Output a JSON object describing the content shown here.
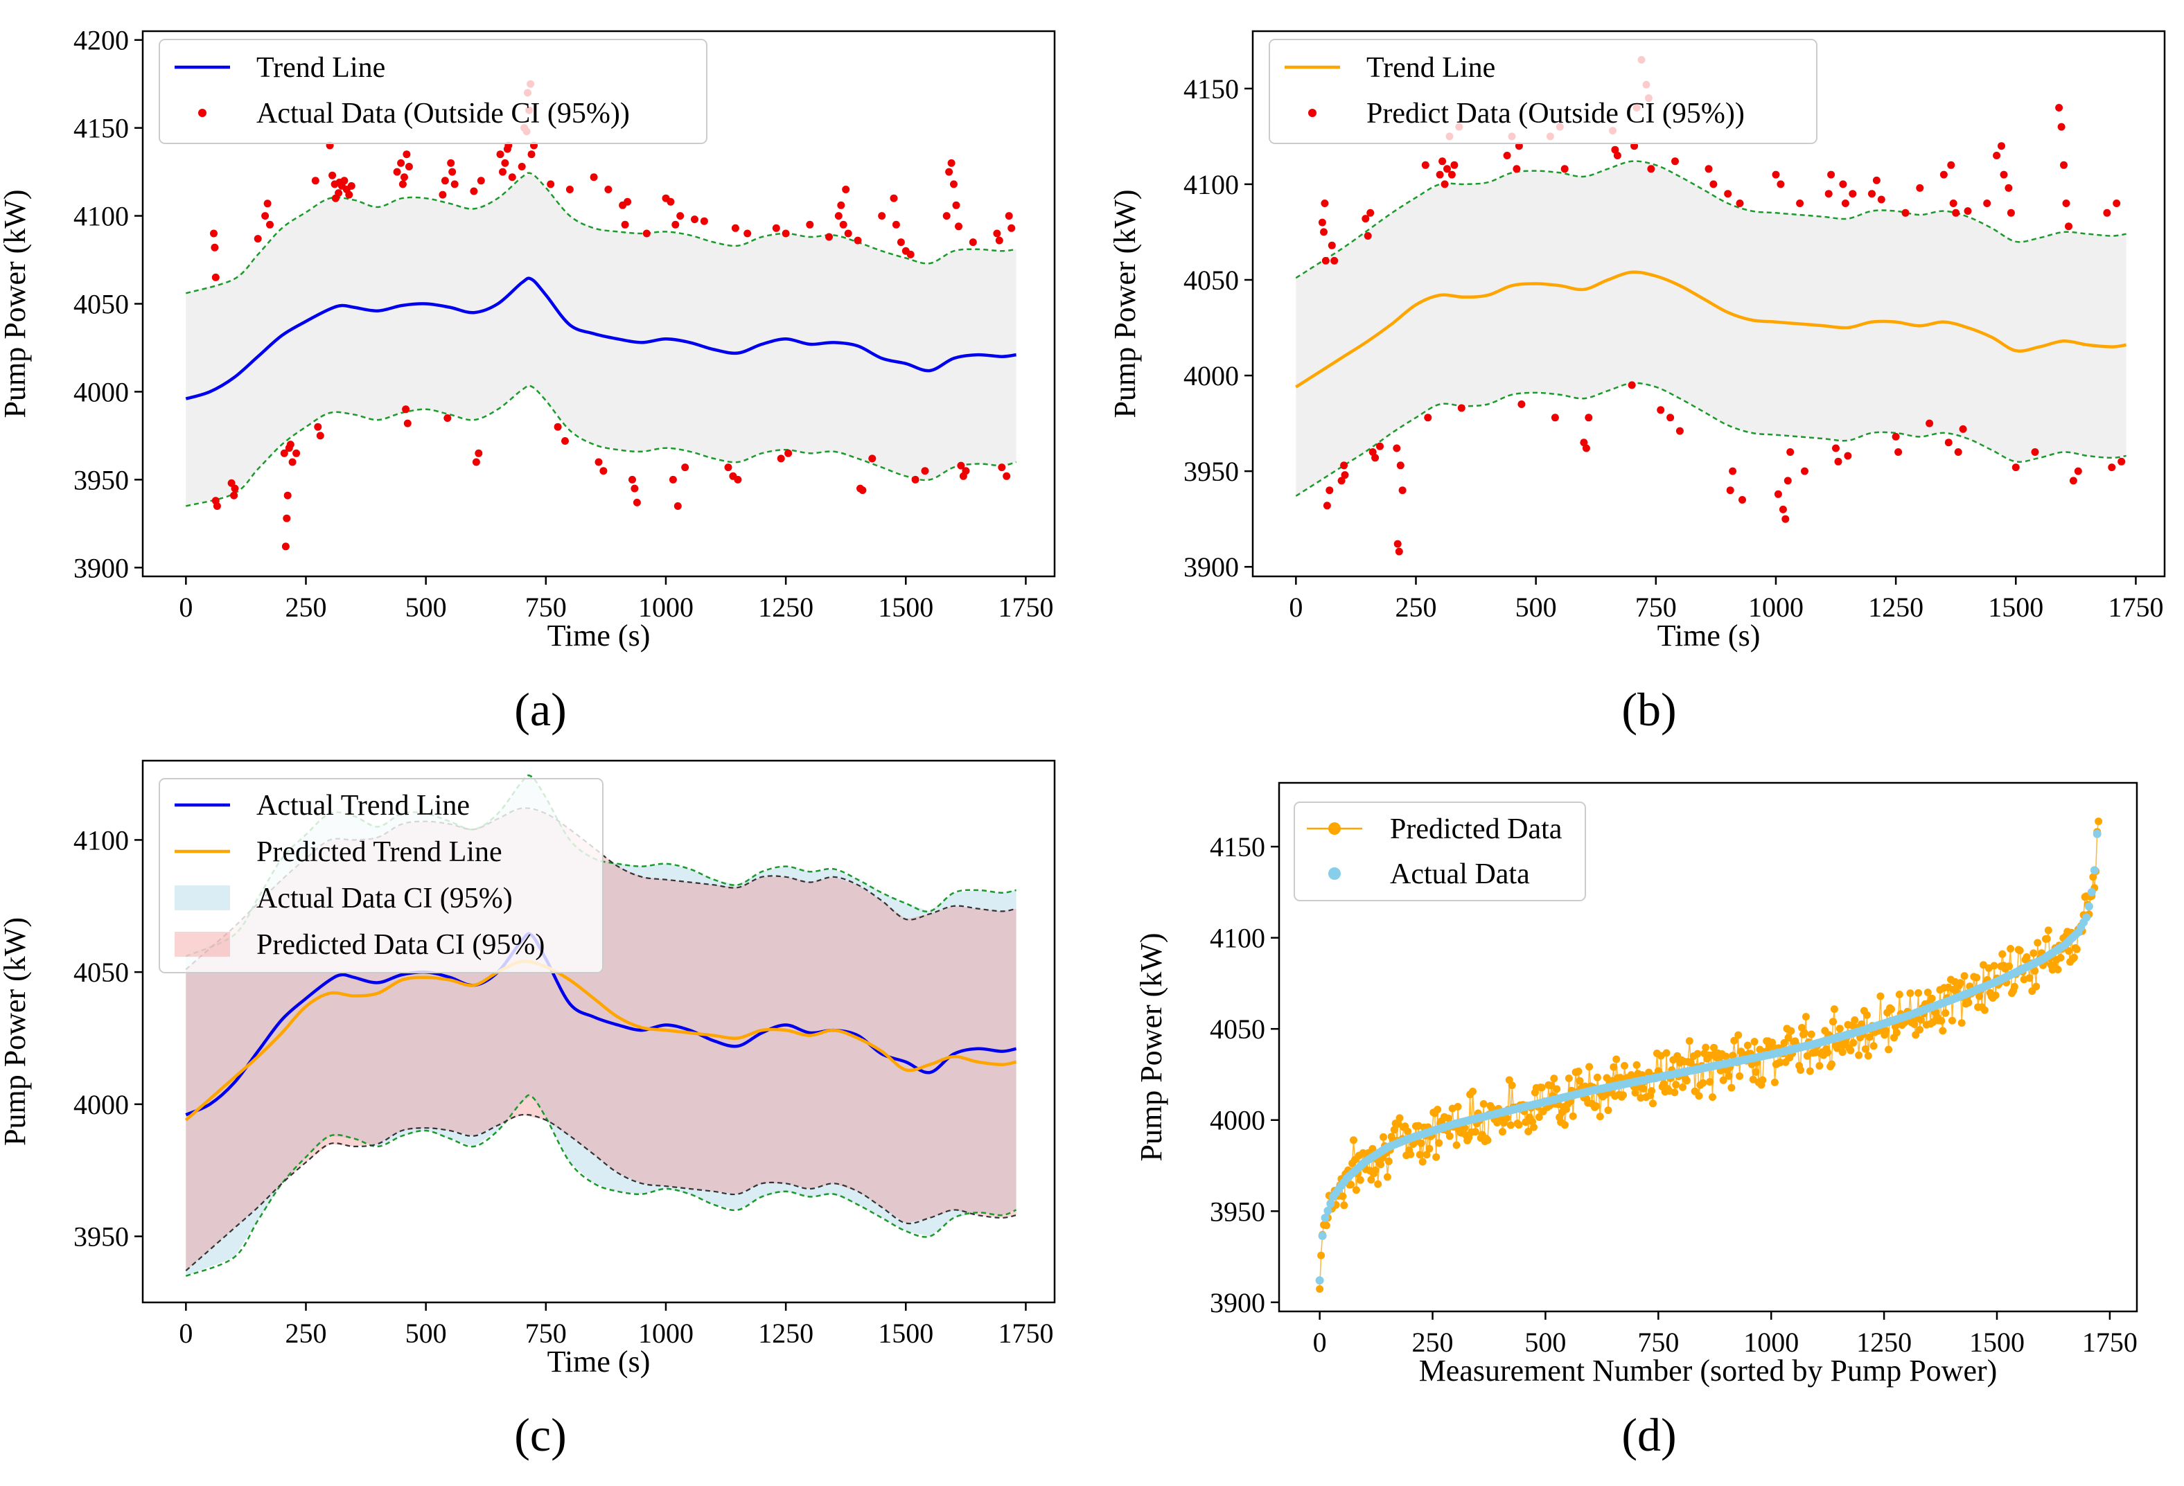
{
  "colors": {
    "actual_trend": "#0000ee",
    "predicted_trend": "#ffa500",
    "outlier": "#ee0000",
    "ci_band": "#d3d3d3",
    "ci_bound": "#1a9a2a",
    "actual_ci_fill": "#add8e6",
    "predicted_ci_fill": "#f08080",
    "predicted_ci_bound": "#333333",
    "predicted_scatter": "#ffa500",
    "actual_scatter": "#87ceeb"
  },
  "chart_data": [
    {
      "panel": "(a)",
      "type": "line",
      "xlabel": "Time (s)",
      "ylabel": "Pump Power (kW)",
      "xlim": [
        -90,
        1810
      ],
      "ylim": [
        3895,
        4205
      ],
      "xticks": [
        0,
        250,
        500,
        750,
        1000,
        1250,
        1500,
        1750
      ],
      "yticks": [
        3900,
        3950,
        4000,
        4050,
        4100,
        4150,
        4200
      ],
      "legend_position": "top-left",
      "legend": [
        "Trend Line",
        "Actual Data (Outside CI (95%))"
      ],
      "trend": {
        "x": [
          0,
          50,
          100,
          150,
          200,
          250,
          300,
          325,
          350,
          400,
          450,
          500,
          550,
          600,
          650,
          700,
          720,
          750,
          800,
          850,
          900,
          950,
          1000,
          1050,
          1100,
          1150,
          1200,
          1250,
          1300,
          1350,
          1400,
          1450,
          1500,
          1550,
          1600,
          1650,
          1700,
          1730
        ],
        "y": [
          3996,
          4000,
          4008,
          4020,
          4032,
          4040,
          4047,
          4049,
          4048,
          4046,
          4049,
          4050,
          4048,
          4045,
          4050,
          4062,
          4064,
          4055,
          4038,
          4033,
          4030,
          4028,
          4030,
          4028,
          4024,
          4022,
          4027,
          4030,
          4027,
          4028,
          4026,
          4019,
          4016,
          4012,
          4019,
          4021,
          4020,
          4021
        ]
      },
      "ci_upper": {
        "x": [
          0,
          100,
          150,
          200,
          250,
          300,
          350,
          400,
          450,
          500,
          550,
          600,
          650,
          700,
          720,
          750,
          800,
          850,
          900,
          950,
          1000,
          1050,
          1100,
          1150,
          1200,
          1250,
          1300,
          1350,
          1400,
          1450,
          1500,
          1550,
          1600,
          1650,
          1700,
          1730
        ],
        "y": [
          4056,
          4064,
          4078,
          4093,
          4102,
          4110,
          4109,
          4105,
          4110,
          4110,
          4107,
          4104,
          4110,
          4122,
          4124,
          4116,
          4100,
          4093,
          4091,
          4090,
          4091,
          4089,
          4085,
          4083,
          4088,
          4090,
          4088,
          4089,
          4085,
          4080,
          4076,
          4073,
          4080,
          4081,
          4080,
          4081
        ]
      },
      "ci_lower": {
        "x": [
          0,
          100,
          150,
          200,
          250,
          300,
          350,
          400,
          450,
          500,
          550,
          600,
          650,
          700,
          720,
          750,
          800,
          850,
          900,
          950,
          1000,
          1050,
          1100,
          1150,
          1200,
          1250,
          1300,
          1350,
          1400,
          1450,
          1500,
          1550,
          1600,
          1650,
          1700,
          1730
        ],
        "y": [
          3935,
          3942,
          3956,
          3970,
          3980,
          3988,
          3987,
          3984,
          3988,
          3990,
          3987,
          3984,
          3990,
          4001,
          4003,
          3995,
          3978,
          3970,
          3967,
          3966,
          3968,
          3966,
          3962,
          3960,
          3965,
          3967,
          3965,
          3966,
          3962,
          3957,
          3952,
          3950,
          3957,
          3959,
          3958,
          3960
        ]
      },
      "outliers": {
        "x": [
          58,
          60,
          62,
          62,
          65,
          95,
          100,
          102,
          150,
          165,
          170,
          175,
          205,
          208,
          210,
          212,
          215,
          218,
          222,
          230,
          270,
          275,
          280,
          300,
          305,
          310,
          312,
          318,
          320,
          325,
          330,
          335,
          340,
          345,
          440,
          448,
          452,
          455,
          458,
          460,
          462,
          465,
          535,
          540,
          545,
          552,
          555,
          560,
          600,
          605,
          610,
          615,
          655,
          660,
          665,
          670,
          672,
          680,
          700,
          705,
          710,
          712,
          715,
          718,
          720,
          725,
          760,
          775,
          790,
          800,
          850,
          860,
          870,
          880,
          910,
          915,
          920,
          930,
          935,
          940,
          960,
          1000,
          1010,
          1015,
          1020,
          1025,
          1030,
          1040,
          1060,
          1080,
          1130,
          1140,
          1145,
          1150,
          1170,
          1230,
          1240,
          1250,
          1255,
          1300,
          1340,
          1360,
          1365,
          1370,
          1375,
          1380,
          1400,
          1405,
          1410,
          1430,
          1450,
          1475,
          1480,
          1490,
          1500,
          1510,
          1520,
          1540,
          1585,
          1590,
          1595,
          1600,
          1605,
          1610,
          1615,
          1620,
          1625,
          1640,
          1690,
          1695,
          1700,
          1710,
          1715,
          1720
        ],
        "y": [
          4090,
          4082,
          3938,
          4065,
          3935,
          3948,
          3941,
          3945,
          4087,
          4100,
          4107,
          4095,
          3965,
          3912,
          3928,
          3941,
          3968,
          3970,
          3960,
          3965,
          4120,
          3980,
          3975,
          4140,
          4123,
          4118,
          4110,
          4113,
          4119,
          4117,
          4120,
          4115,
          4112,
          4117,
          4125,
          4130,
          4118,
          4122,
          3990,
          4135,
          3982,
          4128,
          4112,
          4120,
          3985,
          4130,
          4125,
          4118,
          4114,
          3960,
          3965,
          4120,
          4135,
          4125,
          4130,
          4138,
          4140,
          4122,
          4128,
          4150,
          4148,
          4170,
          4160,
          4175,
          4135,
          4140,
          4118,
          3980,
          3972,
          4115,
          4122,
          3960,
          3955,
          4115,
          4106,
          4095,
          4108,
          3950,
          3945,
          3937,
          4090,
          4110,
          4108,
          3950,
          4095,
          3935,
          4100,
          3957,
          4098,
          4097,
          3957,
          3952,
          4093,
          3950,
          4090,
          4093,
          3962,
          4090,
          3965,
          4095,
          4088,
          4100,
          4106,
          4095,
          4115,
          4090,
          4086,
          3945,
          3944,
          3962,
          4100,
          4110,
          4095,
          4085,
          4080,
          4078,
          3950,
          3955,
          4100,
          4125,
          4130,
          4118,
          4106,
          4094,
          3958,
          3952,
          3955,
          4085,
          4090,
          4086,
          3957,
          3952,
          4100,
          4093
        ]
      }
    },
    {
      "panel": "(b)",
      "type": "line",
      "xlabel": "Time (s)",
      "ylabel": "Pump Power (kW)",
      "xlim": [
        -90,
        1810
      ],
      "ylim": [
        3895,
        4180
      ],
      "xticks": [
        0,
        250,
        500,
        750,
        1000,
        1250,
        1500,
        1750
      ],
      "yticks": [
        3900,
        3950,
        4000,
        4050,
        4100,
        4150
      ],
      "legend_position": "top-left",
      "legend": [
        "Trend Line",
        "Predict Data (Outside CI (95%))"
      ],
      "trend": {
        "x": [
          0,
          50,
          100,
          150,
          200,
          250,
          300,
          350,
          400,
          450,
          500,
          550,
          600,
          650,
          700,
          750,
          800,
          850,
          900,
          950,
          1000,
          1050,
          1100,
          1150,
          1200,
          1250,
          1300,
          1350,
          1400,
          1450,
          1500,
          1550,
          1600,
          1650,
          1700,
          1730
        ],
        "y": [
          3994,
          4002,
          4010,
          4018,
          4027,
          4037,
          4042,
          4041,
          4042,
          4047,
          4048,
          4047,
          4045,
          4050,
          4054,
          4052,
          4047,
          4040,
          4033,
          4029,
          4028,
          4027,
          4026,
          4025,
          4028,
          4028,
          4026,
          4028,
          4025,
          4020,
          4013,
          4015,
          4018,
          4016,
          4015,
          4016
        ]
      },
      "ci_upper": {
        "x": [
          0,
          50,
          100,
          150,
          200,
          250,
          300,
          350,
          400,
          450,
          500,
          550,
          600,
          650,
          700,
          750,
          800,
          850,
          900,
          950,
          1000,
          1050,
          1100,
          1150,
          1200,
          1250,
          1300,
          1350,
          1400,
          1450,
          1500,
          1550,
          1600,
          1650,
          1700,
          1730
        ],
        "y": [
          4051,
          4059,
          4067,
          4076,
          4085,
          4093,
          4100,
          4100,
          4101,
          4106,
          4107,
          4106,
          4104,
          4108,
          4112,
          4110,
          4104,
          4097,
          4090,
          4086,
          4085,
          4084,
          4083,
          4082,
          4086,
          4086,
          4084,
          4086,
          4083,
          4077,
          4070,
          4072,
          4075,
          4074,
          4073,
          4074
        ]
      },
      "ci_lower": {
        "x": [
          0,
          50,
          100,
          150,
          200,
          250,
          300,
          350,
          400,
          450,
          500,
          550,
          600,
          650,
          700,
          750,
          800,
          850,
          900,
          950,
          1000,
          1050,
          1100,
          1150,
          1200,
          1250,
          1300,
          1350,
          1400,
          1450,
          1500,
          1550,
          1600,
          1650,
          1700,
          1730
        ],
        "y": [
          3937,
          3945,
          3953,
          3961,
          3970,
          3978,
          3985,
          3984,
          3985,
          3990,
          3991,
          3990,
          3988,
          3992,
          3996,
          3994,
          3988,
          3981,
          3974,
          3970,
          3969,
          3968,
          3967,
          3966,
          3970,
          3970,
          3968,
          3970,
          3967,
          3961,
          3955,
          3957,
          3960,
          3958,
          3957,
          3958
        ]
      },
      "outliers": {
        "x": [
          55,
          58,
          60,
          62,
          65,
          70,
          75,
          80,
          95,
          100,
          102,
          145,
          150,
          155,
          160,
          165,
          175,
          210,
          212,
          215,
          218,
          222,
          270,
          275,
          300,
          305,
          310,
          315,
          320,
          325,
          330,
          340,
          345,
          440,
          450,
          460,
          465,
          470,
          530,
          540,
          550,
          560,
          600,
          605,
          610,
          660,
          665,
          670,
          700,
          705,
          710,
          720,
          730,
          735,
          740,
          760,
          780,
          790,
          800,
          860,
          870,
          900,
          905,
          910,
          925,
          930,
          1000,
          1005,
          1010,
          1015,
          1020,
          1025,
          1030,
          1050,
          1060,
          1110,
          1115,
          1125,
          1130,
          1140,
          1145,
          1150,
          1160,
          1200,
          1210,
          1220,
          1250,
          1255,
          1270,
          1300,
          1320,
          1350,
          1360,
          1365,
          1370,
          1375,
          1380,
          1390,
          1400,
          1440,
          1460,
          1470,
          1475,
          1485,
          1490,
          1500,
          1540,
          1590,
          1595,
          1600,
          1605,
          1610,
          1620,
          1630,
          1690,
          1700,
          1710,
          1720
        ],
        "y": [
          4080,
          4075,
          4090,
          4060,
          3932,
          3940,
          4068,
          4060,
          3945,
          3953,
          3948,
          4082,
          4073,
          4085,
          3960,
          3957,
          3963,
          3962,
          3912,
          3908,
          3953,
          3940,
          4110,
          3978,
          4105,
          4112,
          4100,
          4108,
          4125,
          4105,
          4110,
          4130,
          3983,
          4115,
          4125,
          4108,
          4120,
          3985,
          4125,
          3978,
          4130,
          4108,
          3965,
          3962,
          3978,
          4128,
          4118,
          4115,
          3995,
          4120,
          4140,
          4165,
          4152,
          4145,
          4108,
          3982,
          3978,
          4112,
          3971,
          4108,
          4100,
          4095,
          3940,
          3950,
          4090,
          3935,
          4105,
          3938,
          4100,
          3930,
          3925,
          3945,
          3960,
          4090,
          3950,
          4095,
          4105,
          3962,
          3955,
          4100,
          4090,
          3958,
          4095,
          4095,
          4102,
          4092,
          3968,
          3960,
          4085,
          4098,
          3975,
          4105,
          3965,
          4110,
          4090,
          4085,
          3960,
          3972,
          4086,
          4090,
          4115,
          4120,
          4105,
          4098,
          4085,
          3952,
          3960,
          4140,
          4130,
          4110,
          4090,
          4078,
          3945,
          3950,
          4085,
          3952,
          4090,
          3955
        ]
      }
    },
    {
      "panel": "(c)",
      "type": "area",
      "xlabel": "Time (s)",
      "ylabel": "Pump Power (kW)",
      "xlim": [
        -90,
        1810
      ],
      "ylim": [
        3925,
        4130
      ],
      "xticks": [
        0,
        250,
        500,
        750,
        1000,
        1250,
        1500,
        1750
      ],
      "yticks": [
        3950,
        4000,
        4050,
        4100
      ],
      "legend_position": "top-left",
      "legend": [
        "Actual Trend Line",
        "Predicted Trend Line",
        "Actual Data CI (95%)",
        "Predicted Data CI (95%)"
      ]
    },
    {
      "panel": "(d)",
      "type": "scatter",
      "xlabel": "Measurement Number (sorted by Pump Power)",
      "ylabel": "Pump Power (kW)",
      "xlim": [
        -90,
        1810
      ],
      "ylim": [
        3895,
        4185
      ],
      "xticks": [
        0,
        250,
        500,
        750,
        1000,
        1250,
        1500,
        1750
      ],
      "yticks": [
        3900,
        3950,
        4000,
        4050,
        4100,
        4150
      ],
      "legend_position": "top-left",
      "legend": [
        "Predicted Data",
        "Actual Data"
      ],
      "actual_sorted": {
        "x": [
          0,
          3,
          10,
          30,
          60,
          100,
          150,
          200,
          250,
          300,
          400,
          500,
          600,
          700,
          800,
          900,
          1000,
          1100,
          1200,
          1300,
          1400,
          1500,
          1550,
          1600,
          1650,
          1680,
          1700,
          1710,
          1720,
          1725
        ],
        "y": [
          3912,
          3930,
          3945,
          3958,
          3968,
          3977,
          3985,
          3990,
          3994,
          3998,
          4004,
          4010,
          4016,
          4021,
          4026,
          4031,
          4036,
          4042,
          4049,
          4057,
          4066,
          4076,
          4082,
          4088,
          4096,
          4103,
          4112,
          4125,
          4145,
          4175
        ]
      }
    }
  ],
  "panel_labels": [
    "(a)",
    "(b)",
    "(c)",
    "(d)"
  ]
}
